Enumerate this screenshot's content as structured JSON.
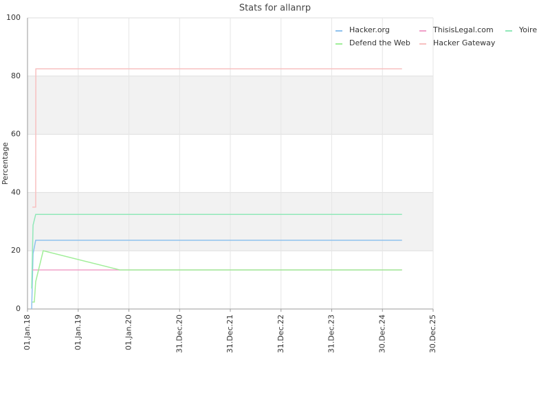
{
  "chart_data": {
    "type": "line",
    "title": "Stats for allanrp",
    "y_label": "Percentage",
    "xlim": [
      "2018-01-01",
      "2025-12-30"
    ],
    "xticks": [
      {
        "value": "2018-01-01",
        "label": "01.Jan.18"
      },
      {
        "value": "2019-01-01",
        "label": "01.Jan.19"
      },
      {
        "value": "2020-01-01",
        "label": "01.Jan.20"
      },
      {
        "value": "2020-12-31",
        "label": "31.Dec.20"
      },
      {
        "value": "2021-12-31",
        "label": "31.Dec.21"
      },
      {
        "value": "2022-12-31",
        "label": "31.Dec.22"
      },
      {
        "value": "2023-12-31",
        "label": "31.Dec.23"
      },
      {
        "value": "2024-12-30",
        "label": "30.Dec.24"
      },
      {
        "value": "2025-12-30",
        "label": "30.Dec.25"
      }
    ],
    "ylim": [
      0,
      100
    ],
    "yticks": [
      0,
      20,
      40,
      60,
      80,
      100
    ],
    "grid": true,
    "series": [
      {
        "name": "Hacker.org",
        "color": "#8ec1ee",
        "x": [
          "2018-01-31",
          "2018-02-10",
          "2018-03-01",
          "2025-05-20"
        ],
        "values": [
          0,
          19,
          23.6,
          23.6
        ]
      },
      {
        "name": "ThisisLegal.com",
        "color": "#f0a0c8",
        "x": [
          "2018-02-05",
          "2025-05-20"
        ],
        "values": [
          13.4,
          13.4
        ]
      },
      {
        "name": "Yoire",
        "color": "#90e8b8",
        "x": [
          "2018-01-31",
          "2018-02-10",
          "2018-03-01",
          "2025-05-20"
        ],
        "values": [
          7,
          28.8,
          32.5,
          32.5
        ]
      },
      {
        "name": "Defend the Web",
        "color": "#a0ee98",
        "x": [
          "2018-02-05",
          "2018-02-19",
          "2018-03-01",
          "2018-04-24",
          "2019-10-30",
          "2025-05-20"
        ],
        "values": [
          2.4,
          2.4,
          9.4,
          20,
          13.4,
          13.4
        ]
      },
      {
        "name": "Hacker Gateway",
        "color": "#f8c0c0",
        "x": [
          "2018-02-05",
          "2018-03-01",
          "2018-03-02",
          "2025-05-20"
        ],
        "values": [
          35,
          35,
          82.5,
          82.5
        ]
      }
    ]
  }
}
